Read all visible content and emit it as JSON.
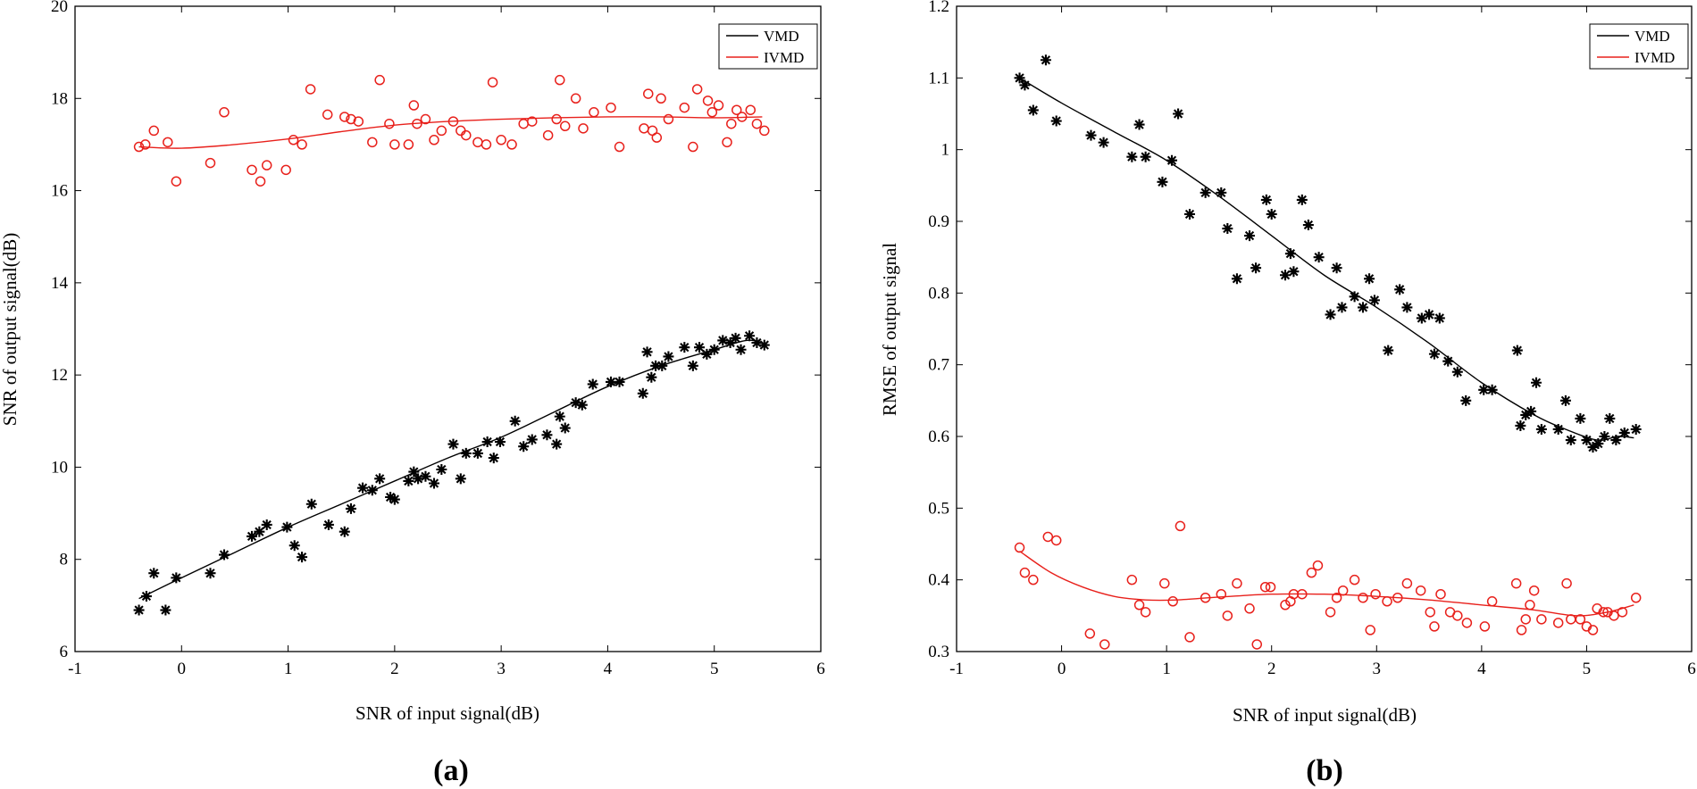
{
  "chart_data": [
    {
      "type": "scatter",
      "panel_label": "(a)",
      "xlabel": "SNR of input signal(dB)",
      "ylabel": "SNR of output signal(dB)",
      "xlim": [
        -1,
        6
      ],
      "ylim": [
        6,
        20
      ],
      "xticks": [
        -1,
        0,
        1,
        2,
        3,
        4,
        5,
        6
      ],
      "yticks": [
        6,
        8,
        10,
        12,
        14,
        16,
        18,
        20
      ],
      "xtick_labels": [
        "-1",
        "0",
        "1",
        "2",
        "3",
        "4",
        "5",
        "6"
      ],
      "ytick_labels": [
        "6",
        "8",
        "10",
        "12",
        "14",
        "16",
        "18",
        "20"
      ],
      "legend": {
        "position": "top-right",
        "entries": [
          "VMD",
          "IVMD"
        ]
      },
      "series": [
        {
          "name": "VMD",
          "color": "#000000",
          "marker": "asterisk",
          "x": [
            -0.4,
            -0.33,
            -0.26,
            -0.15,
            -0.05,
            0.27,
            0.4,
            0.66,
            0.73,
            0.8,
            0.99,
            1.06,
            1.13,
            1.22,
            1.38,
            1.53,
            1.59,
            1.7,
            1.79,
            1.86,
            1.96,
            2.0,
            2.13,
            2.18,
            2.22,
            2.29,
            2.37,
            2.44,
            2.55,
            2.62,
            2.67,
            2.78,
            2.87,
            2.93,
            2.99,
            3.13,
            3.21,
            3.29,
            3.43,
            3.52,
            3.55,
            3.6,
            3.7,
            3.76,
            3.86,
            4.03,
            4.11,
            4.33,
            4.37,
            4.41,
            4.45,
            4.51,
            4.57,
            4.72,
            4.8,
            4.86,
            4.93,
            5.0,
            5.08,
            5.15,
            5.2,
            5.25,
            5.33,
            5.4,
            5.47
          ],
          "y": [
            6.9,
            7.2,
            7.7,
            6.9,
            7.6,
            7.7,
            8.1,
            8.5,
            8.6,
            8.75,
            8.7,
            8.3,
            8.05,
            9.2,
            8.75,
            8.6,
            9.1,
            9.55,
            9.5,
            9.75,
            9.35,
            9.3,
            9.7,
            9.9,
            9.75,
            9.8,
            9.65,
            9.95,
            10.5,
            9.75,
            10.3,
            10.3,
            10.55,
            10.2,
            10.55,
            11.0,
            10.45,
            10.6,
            10.7,
            10.5,
            11.1,
            10.85,
            11.4,
            11.35,
            11.8,
            11.85,
            11.85,
            11.6,
            12.5,
            11.95,
            12.2,
            12.2,
            12.4,
            12.6,
            12.2,
            12.6,
            12.45,
            12.55,
            12.75,
            12.7,
            12.8,
            12.55,
            12.85,
            12.7,
            12.65
          ],
          "fit_x": [
            -0.4,
            0,
            0.5,
            1,
            1.5,
            2,
            2.5,
            3,
            3.5,
            4,
            4.5,
            5,
            5.3,
            5.45
          ],
          "fit_y": [
            7.15,
            7.6,
            8.15,
            8.7,
            9.2,
            9.7,
            10.2,
            10.65,
            11.2,
            11.75,
            12.2,
            12.55,
            12.75,
            12.7
          ]
        },
        {
          "name": "IVMD",
          "color": "#e8201b",
          "marker": "circle",
          "x": [
            -0.4,
            -0.34,
            -0.26,
            -0.13,
            -0.05,
            0.27,
            0.4,
            0.66,
            0.74,
            0.8,
            0.98,
            1.05,
            1.13,
            1.21,
            1.37,
            1.53,
            1.59,
            1.66,
            1.79,
            1.86,
            1.95,
            2.0,
            2.13,
            2.18,
            2.21,
            2.29,
            2.37,
            2.44,
            2.55,
            2.62,
            2.67,
            2.78,
            2.86,
            2.92,
            3.0,
            3.1,
            3.21,
            3.29,
            3.44,
            3.52,
            3.55,
            3.6,
            3.7,
            3.77,
            3.87,
            4.03,
            4.11,
            4.34,
            4.38,
            4.42,
            4.46,
            4.5,
            4.57,
            4.72,
            4.8,
            4.84,
            4.94,
            4.98,
            5.04,
            5.12,
            5.16,
            5.21,
            5.26,
            5.34,
            5.4,
            5.47
          ],
          "y": [
            16.95,
            17.0,
            17.3,
            17.05,
            16.2,
            16.6,
            17.7,
            16.45,
            16.2,
            16.55,
            16.45,
            17.1,
            17.0,
            18.2,
            17.65,
            17.6,
            17.55,
            17.5,
            17.05,
            18.4,
            17.45,
            17.0,
            17.0,
            17.85,
            17.45,
            17.55,
            17.1,
            17.3,
            17.5,
            17.3,
            17.2,
            17.05,
            17.0,
            18.35,
            17.1,
            17.0,
            17.45,
            17.5,
            17.2,
            17.55,
            18.4,
            17.4,
            18.0,
            17.35,
            17.7,
            17.8,
            16.95,
            17.35,
            18.1,
            17.3,
            17.15,
            18.0,
            17.55,
            17.8,
            16.95,
            18.2,
            17.95,
            17.7,
            17.85,
            17.05,
            17.45,
            17.75,
            17.6,
            17.75,
            17.45,
            17.3
          ],
          "fit_x": [
            -0.4,
            0,
            0.5,
            1,
            1.5,
            2,
            2.5,
            3,
            3.5,
            4,
            4.5,
            5,
            5.45
          ],
          "fit_y": [
            16.95,
            16.92,
            17.0,
            17.12,
            17.28,
            17.42,
            17.5,
            17.55,
            17.58,
            17.6,
            17.6,
            17.58,
            17.6
          ]
        }
      ]
    },
    {
      "type": "scatter",
      "panel_label": "(b)",
      "xlabel": "SNR of input signal(dB)",
      "ylabel": "RMSE of output signal",
      "xlim": [
        -1,
        6
      ],
      "ylim": [
        0.3,
        1.2
      ],
      "xticks": [
        -1,
        0,
        1,
        2,
        3,
        4,
        5,
        6
      ],
      "yticks": [
        0.3,
        0.4,
        0.5,
        0.6,
        0.7,
        0.8,
        0.9,
        1.0,
        1.1,
        1.2
      ],
      "xtick_labels": [
        "-1",
        "0",
        "1",
        "2",
        "3",
        "4",
        "5",
        "6"
      ],
      "ytick_labels": [
        "0.3",
        "0.4",
        "0.5",
        "0.6",
        "0.7",
        "0.8",
        "0.9",
        "1",
        "1.1",
        "1.2"
      ],
      "legend": {
        "position": "top-right",
        "entries": [
          "VMD",
          "IVMD"
        ]
      },
      "series": [
        {
          "name": "VMD",
          "color": "#000000",
          "marker": "asterisk",
          "x": [
            -0.4,
            -0.35,
            -0.27,
            -0.15,
            -0.05,
            0.28,
            0.4,
            0.67,
            0.74,
            0.8,
            0.96,
            1.05,
            1.11,
            1.22,
            1.37,
            1.52,
            1.58,
            1.67,
            1.79,
            1.85,
            1.95,
            2.0,
            2.13,
            2.18,
            2.21,
            2.29,
            2.35,
            2.45,
            2.56,
            2.62,
            2.67,
            2.79,
            2.87,
            2.93,
            2.98,
            3.11,
            3.22,
            3.29,
            3.43,
            3.5,
            3.55,
            3.6,
            3.68,
            3.77,
            3.85,
            4.02,
            4.1,
            4.34,
            4.37,
            4.42,
            4.47,
            4.52,
            4.57,
            4.73,
            4.8,
            4.85,
            4.94,
            5.0,
            5.06,
            5.11,
            5.17,
            5.22,
            5.28,
            5.36,
            5.47
          ],
          "y": [
            1.1,
            1.09,
            1.055,
            1.125,
            1.04,
            1.02,
            1.01,
            0.99,
            1.035,
            0.99,
            0.955,
            0.985,
            1.05,
            0.91,
            0.94,
            0.94,
            0.89,
            0.82,
            0.88,
            0.835,
            0.93,
            0.91,
            0.825,
            0.855,
            0.83,
            0.93,
            0.895,
            0.85,
            0.77,
            0.835,
            0.78,
            0.795,
            0.78,
            0.82,
            0.79,
            0.72,
            0.805,
            0.78,
            0.765,
            0.77,
            0.715,
            0.765,
            0.705,
            0.69,
            0.65,
            0.665,
            0.665,
            0.72,
            0.615,
            0.63,
            0.635,
            0.675,
            0.61,
            0.61,
            0.65,
            0.595,
            0.625,
            0.595,
            0.585,
            0.59,
            0.6,
            0.625,
            0.595,
            0.605,
            0.61
          ],
          "fit_x": [
            -0.4,
            0,
            0.5,
            1,
            1.5,
            2,
            2.5,
            3,
            3.5,
            4,
            4.5,
            4.8,
            5.1,
            5.3,
            5.45
          ],
          "fit_y": [
            1.1,
            1.065,
            1.025,
            0.985,
            0.935,
            0.88,
            0.825,
            0.78,
            0.73,
            0.675,
            0.63,
            0.61,
            0.595,
            0.6,
            0.598
          ]
        },
        {
          "name": "IVMD",
          "color": "#e8201b",
          "marker": "circle",
          "x": [
            -0.4,
            -0.35,
            -0.27,
            -0.13,
            -0.05,
            0.27,
            0.41,
            0.67,
            0.74,
            0.8,
            0.98,
            1.06,
            1.13,
            1.22,
            1.37,
            1.52,
            1.58,
            1.67,
            1.79,
            1.86,
            1.94,
            1.99,
            2.13,
            2.18,
            2.21,
            2.29,
            2.38,
            2.44,
            2.56,
            2.62,
            2.68,
            2.79,
            2.87,
            2.94,
            2.99,
            3.1,
            3.2,
            3.29,
            3.42,
            3.51,
            3.55,
            3.61,
            3.7,
            3.77,
            3.86,
            4.03,
            4.1,
            4.33,
            4.38,
            4.42,
            4.46,
            4.5,
            4.57,
            4.73,
            4.81,
            4.85,
            4.94,
            5.0,
            5.06,
            5.1,
            5.16,
            5.2,
            5.26,
            5.34,
            5.47
          ],
          "y": [
            0.445,
            0.41,
            0.4,
            0.46,
            0.455,
            0.325,
            0.31,
            0.4,
            0.365,
            0.355,
            0.395,
            0.37,
            0.475,
            0.32,
            0.375,
            0.38,
            0.35,
            0.395,
            0.36,
            0.31,
            0.39,
            0.39,
            0.365,
            0.37,
            0.38,
            0.38,
            0.41,
            0.42,
            0.355,
            0.375,
            0.385,
            0.4,
            0.375,
            0.33,
            0.38,
            0.37,
            0.375,
            0.395,
            0.385,
            0.355,
            0.335,
            0.38,
            0.355,
            0.35,
            0.34,
            0.335,
            0.37,
            0.395,
            0.33,
            0.345,
            0.365,
            0.385,
            0.345,
            0.34,
            0.395,
            0.345,
            0.345,
            0.335,
            0.33,
            0.36,
            0.355,
            0.355,
            0.35,
            0.355,
            0.375
          ],
          "fit_x": [
            -0.4,
            -0.1,
            0.2,
            0.5,
            0.8,
            1.1,
            1.5,
            2,
            2.5,
            3,
            3.5,
            4,
            4.5,
            4.9,
            5.2,
            5.45
          ],
          "fit_y": [
            0.44,
            0.41,
            0.39,
            0.377,
            0.372,
            0.372,
            0.376,
            0.38,
            0.38,
            0.377,
            0.372,
            0.365,
            0.358,
            0.35,
            0.355,
            0.365
          ]
        }
      ]
    }
  ]
}
